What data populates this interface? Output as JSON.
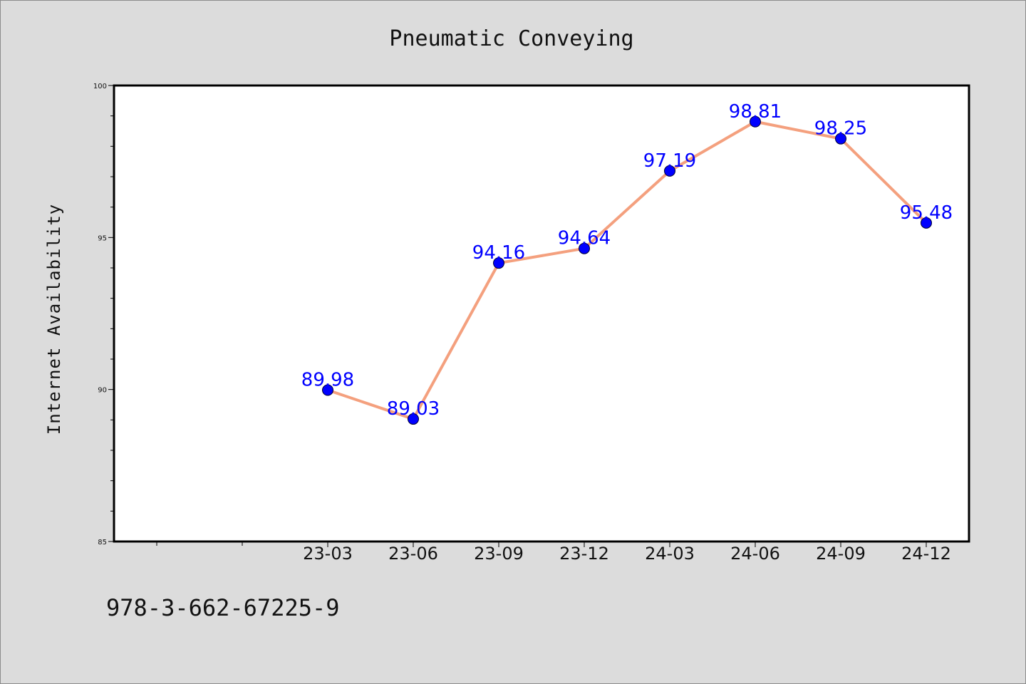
{
  "chart_data": {
    "type": "line",
    "title": "Pneumatic Conveying",
    "xlabel": "",
    "ylabel": "Internet Availability",
    "categories": [
      "23-03",
      "23-06",
      "23-09",
      "23-12",
      "24-03",
      "24-06",
      "24-09",
      "24-12"
    ],
    "series": [
      {
        "values": [
          89.98,
          89.03,
          94.16,
          94.64,
          97.19,
          98.81,
          98.25,
          95.48
        ]
      }
    ],
    "ylim": [
      85,
      100
    ],
    "yticks": [
      85,
      90,
      95,
      100
    ],
    "x_extra_slots_before": 2,
    "grid": false,
    "legend": "none",
    "data_labels": true,
    "colors": {
      "line": "#f4a07e",
      "marker": "#0000ff",
      "data_label": "#0000ff",
      "background": "#dcdcdc",
      "plot_background": "#ffffff"
    }
  },
  "footer_text": "978-3-662-67225-9"
}
